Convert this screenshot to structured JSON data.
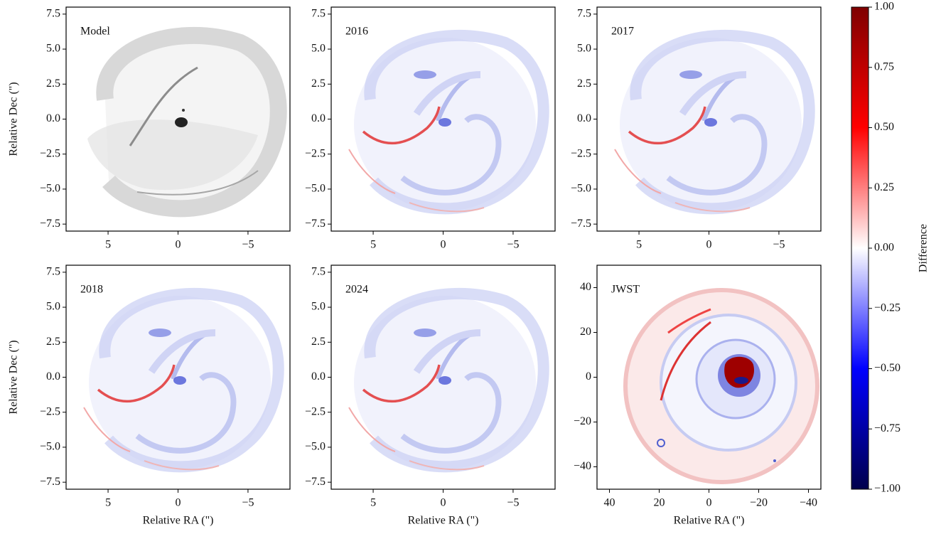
{
  "chart_data": [
    {
      "type": "image",
      "title": "Model",
      "colormap": "gray",
      "ylabel": "Relative Dec (\")",
      "xlim": [
        8,
        -8
      ],
      "ylim": [
        -8,
        8
      ],
      "xticks": [
        5,
        0,
        {
          "value": -5,
          "label": "−5"
        }
      ],
      "yticks": [
        {
          "value": 7.5,
          "label": "7.5"
        },
        {
          "value": 5,
          "label": "5.0"
        },
        {
          "value": 2.5,
          "label": "2.5"
        },
        {
          "value": 0,
          "label": "0.0"
        },
        {
          "value": -2.5,
          "label": "−2.5"
        },
        {
          "value": -5,
          "label": "−5.0"
        },
        {
          "value": -7.5,
          "label": "−7.5"
        }
      ]
    },
    {
      "type": "image",
      "title": "2016",
      "colormap": "seismic",
      "xlim": [
        8,
        -8
      ],
      "ylim": [
        -8,
        8
      ],
      "xticks": [
        5,
        0,
        {
          "value": -5,
          "label": "−5"
        }
      ],
      "yticks": [
        {
          "value": 7.5,
          "label": "7.5"
        },
        {
          "value": 5,
          "label": "5.0"
        },
        {
          "value": 2.5,
          "label": "2.5"
        },
        {
          "value": 0,
          "label": "0.0"
        },
        {
          "value": -2.5,
          "label": "−2.5"
        },
        {
          "value": -5,
          "label": "−5.0"
        },
        {
          "value": -7.5,
          "label": "−7.5"
        }
      ]
    },
    {
      "type": "image",
      "title": "2017",
      "colormap": "seismic",
      "xlim": [
        8,
        -8
      ],
      "ylim": [
        -8,
        8
      ],
      "xticks": [
        5,
        0,
        {
          "value": -5,
          "label": "−5"
        }
      ],
      "yticks": [
        {
          "value": 7.5,
          "label": "7.5"
        },
        {
          "value": 5,
          "label": "5.0"
        },
        {
          "value": 2.5,
          "label": "2.5"
        },
        {
          "value": 0,
          "label": "0.0"
        },
        {
          "value": -2.5,
          "label": "−2.5"
        },
        {
          "value": -5,
          "label": "−5.0"
        },
        {
          "value": -7.5,
          "label": "−7.5"
        }
      ]
    },
    {
      "type": "image",
      "title": "2018",
      "colormap": "seismic",
      "xlabel": "Relative RA (\")",
      "ylabel": "Relative Dec (\")",
      "xlim": [
        8,
        -8
      ],
      "ylim": [
        -8,
        8
      ],
      "xticks": [
        5,
        0,
        {
          "value": -5,
          "label": "−5"
        }
      ],
      "yticks": [
        {
          "value": 7.5,
          "label": "7.5"
        },
        {
          "value": 5,
          "label": "5.0"
        },
        {
          "value": 2.5,
          "label": "2.5"
        },
        {
          "value": 0,
          "label": "0.0"
        },
        {
          "value": -2.5,
          "label": "−2.5"
        },
        {
          "value": -5,
          "label": "−5.0"
        },
        {
          "value": -7.5,
          "label": "−7.5"
        }
      ]
    },
    {
      "type": "image",
      "title": "2024",
      "colormap": "seismic",
      "xlabel": "Relative RA (\")",
      "xlim": [
        8,
        -8
      ],
      "ylim": [
        -8,
        8
      ],
      "xticks": [
        5,
        0,
        {
          "value": -5,
          "label": "−5"
        }
      ],
      "yticks": [
        {
          "value": 7.5,
          "label": "7.5"
        },
        {
          "value": 5,
          "label": "5.0"
        },
        {
          "value": 2.5,
          "label": "2.5"
        },
        {
          "value": 0,
          "label": "0.0"
        },
        {
          "value": -2.5,
          "label": "−2.5"
        },
        {
          "value": -5,
          "label": "−5.0"
        },
        {
          "value": -7.5,
          "label": "−7.5"
        }
      ]
    },
    {
      "type": "image",
      "title": "JWST",
      "colormap": "seismic",
      "xlabel": "Relative RA (\")",
      "xlim": [
        45,
        -45
      ],
      "ylim": [
        -50,
        50
      ],
      "xticks": [
        40,
        20,
        0,
        {
          "value": -20,
          "label": "−20"
        },
        {
          "value": -40,
          "label": "−40"
        }
      ],
      "yticks": [
        40,
        20,
        0,
        {
          "value": -20,
          "label": "−20"
        },
        {
          "value": -40,
          "label": "−40"
        }
      ]
    },
    {
      "type": "colorbar",
      "colormap": "seismic",
      "label": "Difference",
      "ylim": [
        -1,
        1
      ],
      "yticks": [
        {
          "value": 1,
          "label": "1.00"
        },
        {
          "value": 0.75,
          "label": "0.75"
        },
        {
          "value": 0.5,
          "label": "0.50"
        },
        {
          "value": 0.25,
          "label": "0.25"
        },
        {
          "value": 0,
          "label": "0.00"
        },
        {
          "value": -0.25,
          "label": "−0.25"
        },
        {
          "value": -0.5,
          "label": "−0.50"
        },
        {
          "value": -0.75,
          "label": "−0.75"
        },
        {
          "value": -1,
          "label": "−1.00"
        }
      ]
    }
  ]
}
